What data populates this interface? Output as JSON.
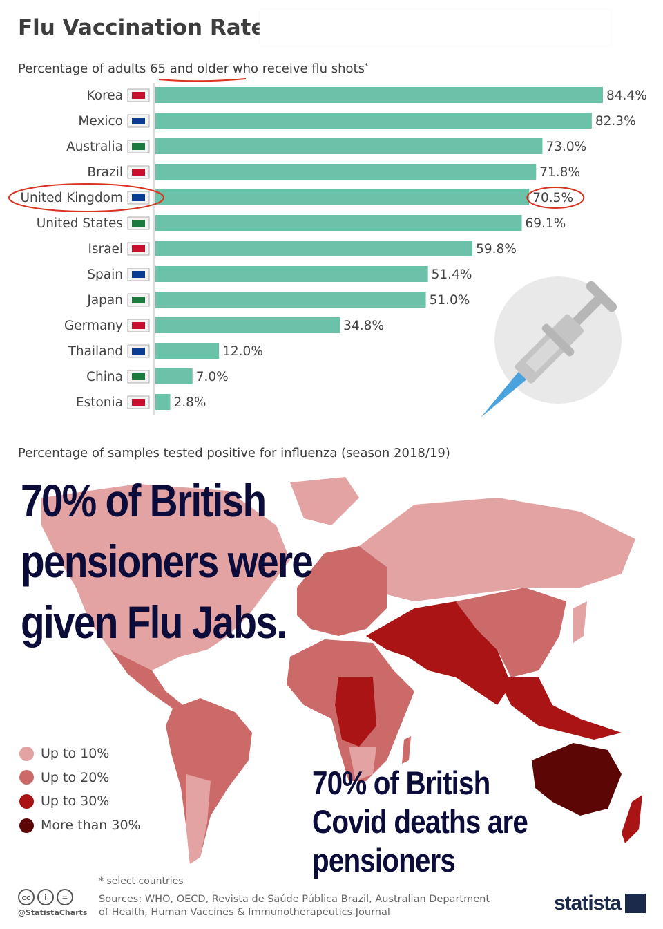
{
  "header": {
    "title": "Flu Vaccination Rates",
    "subtitle": "Percentage of adults 65 and older who receive flu shots",
    "subtitle_mark": "*"
  },
  "chart_data": {
    "type": "bar",
    "orientation": "horizontal",
    "title": "Percentage of adults 65 and older who receive flu shots",
    "categories": [
      "Korea",
      "Mexico",
      "Australia",
      "Brazil",
      "United Kingdom",
      "United States",
      "Israel",
      "Spain",
      "Japan",
      "Germany",
      "Thailand",
      "China",
      "Estonia"
    ],
    "values": [
      84.4,
      82.3,
      73.0,
      71.8,
      70.5,
      69.1,
      59.8,
      51.4,
      51.0,
      34.8,
      12.0,
      7.0,
      2.8
    ],
    "value_labels": [
      "84.4%",
      "82.3%",
      "73.0%",
      "71.8%",
      "70.5%",
      "69.1%",
      "59.8%",
      "51.4%",
      "51.0%",
      "34.8%",
      "12.0%",
      "7.0%",
      "2.8%"
    ],
    "unit": "%",
    "xlim": [
      0,
      84.4
    ],
    "highlighted": "United Kingdom",
    "bar_color": "#6cc2a8",
    "highlight_color": "#d9321f"
  },
  "map": {
    "title": "Percentage of samples tested positive for influenza (season 2018/19)",
    "legend": [
      {
        "label": "Up to 10%",
        "color": "#e3a3a3"
      },
      {
        "label": "Up to 20%",
        "color": "#cc6a6a"
      },
      {
        "label": "Up to 30%",
        "color": "#aa1414"
      },
      {
        "label": "More than 30%",
        "color": "#5c0606"
      }
    ]
  },
  "overlays": {
    "top_lines": [
      "70% of British",
      "pensioners were",
      "given Flu Jabs."
    ],
    "bottom_lines": [
      "70% of British",
      "Covid deaths are",
      "pensioners"
    ],
    "color": "#0c0c3a"
  },
  "footer": {
    "footnote": "* select countries",
    "sources_line1": "Sources: WHO, OECD, Revista de Saúde Pública Brazil, Australian Department",
    "sources_line2": "of Health, Human Vaccines & Immunotherapeutics Journal",
    "handle": "@StatistaCharts",
    "brand": "statista"
  },
  "colors": {
    "accent": "#6cc2a8",
    "title_text": "#3d3d3d"
  }
}
